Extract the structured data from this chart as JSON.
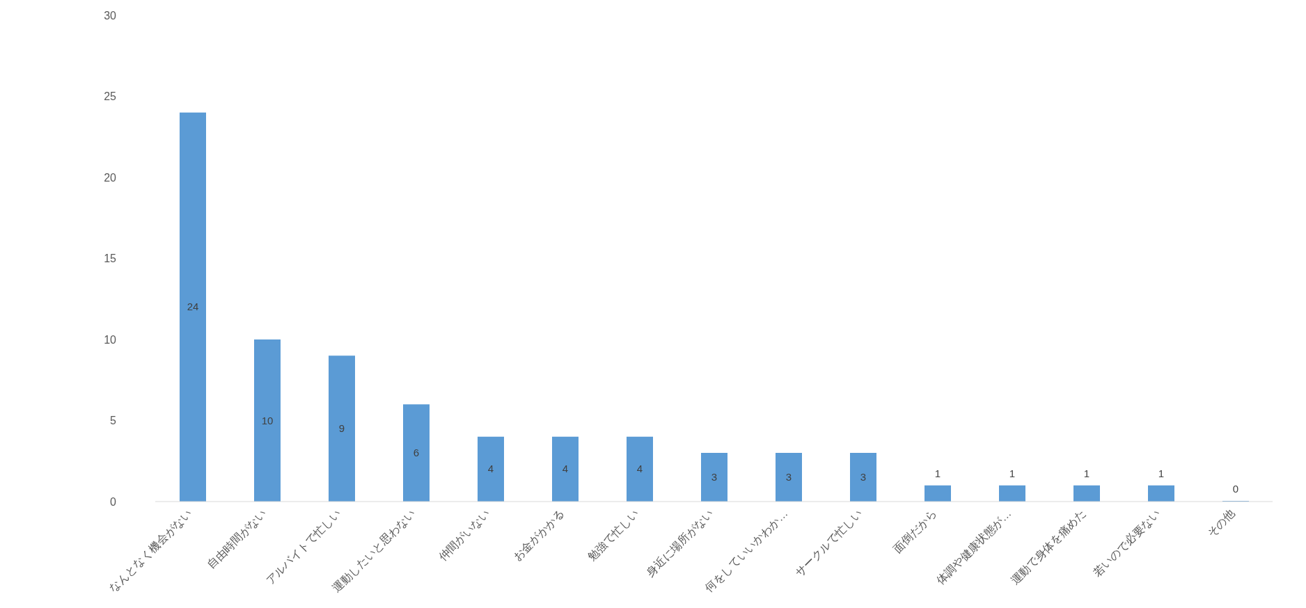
{
  "chart_data": {
    "type": "bar",
    "categories": [
      "なんとなく機会がない",
      "自由時間がない",
      "アルバイトで忙しい",
      "運動したいと思わない",
      "仲間がいない",
      "お金がかかる",
      "勉強で忙しい",
      "身近に場所がない",
      "何をしていいかわか…",
      "サークルで忙しい",
      "面倒だから",
      "体調や健康状態が…",
      "運動で身体を痛めた",
      "若いので必要ない",
      "その他"
    ],
    "values": [
      24,
      10,
      9,
      6,
      4,
      4,
      4,
      3,
      3,
      3,
      1,
      1,
      1,
      1,
      0
    ],
    "color": "#5b9bd5",
    "ylim": [
      0,
      30
    ],
    "yticks": [
      0,
      5,
      10,
      15,
      20,
      25,
      30
    ],
    "data_labels": true
  }
}
